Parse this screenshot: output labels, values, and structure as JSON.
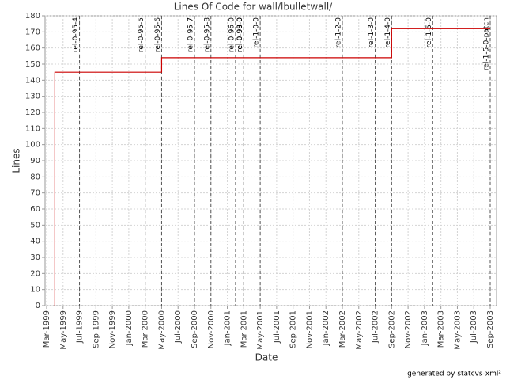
{
  "chart_data": {
    "type": "line",
    "step": true,
    "title": "Lines Of Code for wall/lbulletwall/",
    "x_label": "Date",
    "y_label": "Lines",
    "footer": "generated by statcvs-xml²",
    "x": [
      "1999-04",
      "1999-04",
      "2000-05",
      "2002-09",
      "2003-09"
    ],
    "series": [
      {
        "color": "#cc0000",
        "values": [
          0,
          145,
          154,
          172,
          172
        ]
      }
    ],
    "xlim": [
      "1999-03",
      "2003-09"
    ],
    "xticks": [
      {
        "value": "1999-03",
        "label": "Mar-1999"
      },
      {
        "value": "1999-05",
        "label": "May-1999"
      },
      {
        "value": "1999-07",
        "label": "Jul-1999"
      },
      {
        "value": "1999-09",
        "label": "Sep-1999"
      },
      {
        "value": "1999-11",
        "label": "Nov-1999"
      },
      {
        "value": "2000-01",
        "label": "Jan-2000"
      },
      {
        "value": "2000-03",
        "label": "Mar-2000"
      },
      {
        "value": "2000-05",
        "label": "May-2000"
      },
      {
        "value": "2000-07",
        "label": "Jul-2000"
      },
      {
        "value": "2000-09",
        "label": "Sep-2000"
      },
      {
        "value": "2000-11",
        "label": "Nov-2000"
      },
      {
        "value": "2001-01",
        "label": "Jan-2001"
      },
      {
        "value": "2001-03",
        "label": "Mar-2001"
      },
      {
        "value": "2001-05",
        "label": "May-2001"
      },
      {
        "value": "2001-07",
        "label": "Jul-2001"
      },
      {
        "value": "2001-09",
        "label": "Sep-2001"
      },
      {
        "value": "2001-11",
        "label": "Nov-2001"
      },
      {
        "value": "2002-01",
        "label": "Jan-2002"
      },
      {
        "value": "2002-03",
        "label": "Mar-2002"
      },
      {
        "value": "2002-05",
        "label": "May-2002"
      },
      {
        "value": "2002-07",
        "label": "Jul-2002"
      },
      {
        "value": "2002-09",
        "label": "Sep-2002"
      },
      {
        "value": "2002-11",
        "label": "Nov-2002"
      },
      {
        "value": "2003-01",
        "label": "Jan-2003"
      },
      {
        "value": "2003-03",
        "label": "Mar-2003"
      },
      {
        "value": "2003-05",
        "label": "May-2003"
      },
      {
        "value": "2003-07",
        "label": "Jul-2003"
      },
      {
        "value": "2003-09",
        "label": "Sep-2003"
      }
    ],
    "ylim": [
      0,
      180
    ],
    "yticks": [
      0,
      10,
      20,
      30,
      40,
      50,
      60,
      70,
      80,
      90,
      100,
      110,
      120,
      130,
      140,
      150,
      160,
      170,
      180
    ],
    "grid": true,
    "annotations": [
      {
        "label": "rel-0-95-4",
        "x": "1999-07"
      },
      {
        "label": "rel-0-95-5",
        "x": "2000-03"
      },
      {
        "label": "rel-0-95-6",
        "x": "2000-05"
      },
      {
        "label": "rel-0-95-7",
        "x": "2000-09"
      },
      {
        "label": "rel-0-95-8",
        "x": "2000-11"
      },
      {
        "label": "rel-0-96-0",
        "x": "2001-02"
      },
      {
        "label": "rel-0-98-0",
        "x": "2001-03"
      },
      {
        "label": "rel-0-99-0",
        "x": "2001-03"
      },
      {
        "label": "rel-1-0-0",
        "x": "2001-05"
      },
      {
        "label": "rel-1-2-0",
        "x": "2002-03"
      },
      {
        "label": "rel-1-3-0",
        "x": "2002-07"
      },
      {
        "label": "rel-1-4-0",
        "x": "2002-09"
      },
      {
        "label": "rel-1-5-0",
        "x": "2003-02"
      },
      {
        "label": "rel-1-5-0-patch",
        "x": "2003-09"
      }
    ]
  }
}
